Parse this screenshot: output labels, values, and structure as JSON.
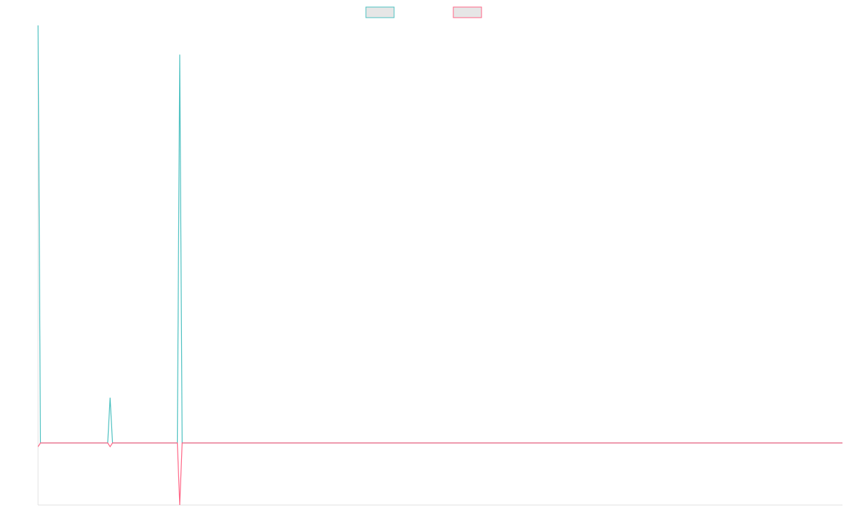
{
  "chart_data": {
    "type": "line",
    "x": [
      0,
      1,
      29,
      30,
      31,
      58,
      59,
      60,
      335
    ],
    "xlim": [
      0,
      335
    ],
    "ylim": [
      -1,
      6.73
    ],
    "series": [
      {
        "color": "#4bc0c0",
        "values": [
          6.73,
          0,
          0,
          0.73,
          0,
          0,
          6.26,
          0,
          0
        ]
      },
      {
        "color": "#ff6384",
        "values": [
          -0.06,
          0,
          0,
          -0.06,
          0,
          0,
          -1,
          0,
          0
        ]
      }
    ],
    "legend": "top"
  }
}
